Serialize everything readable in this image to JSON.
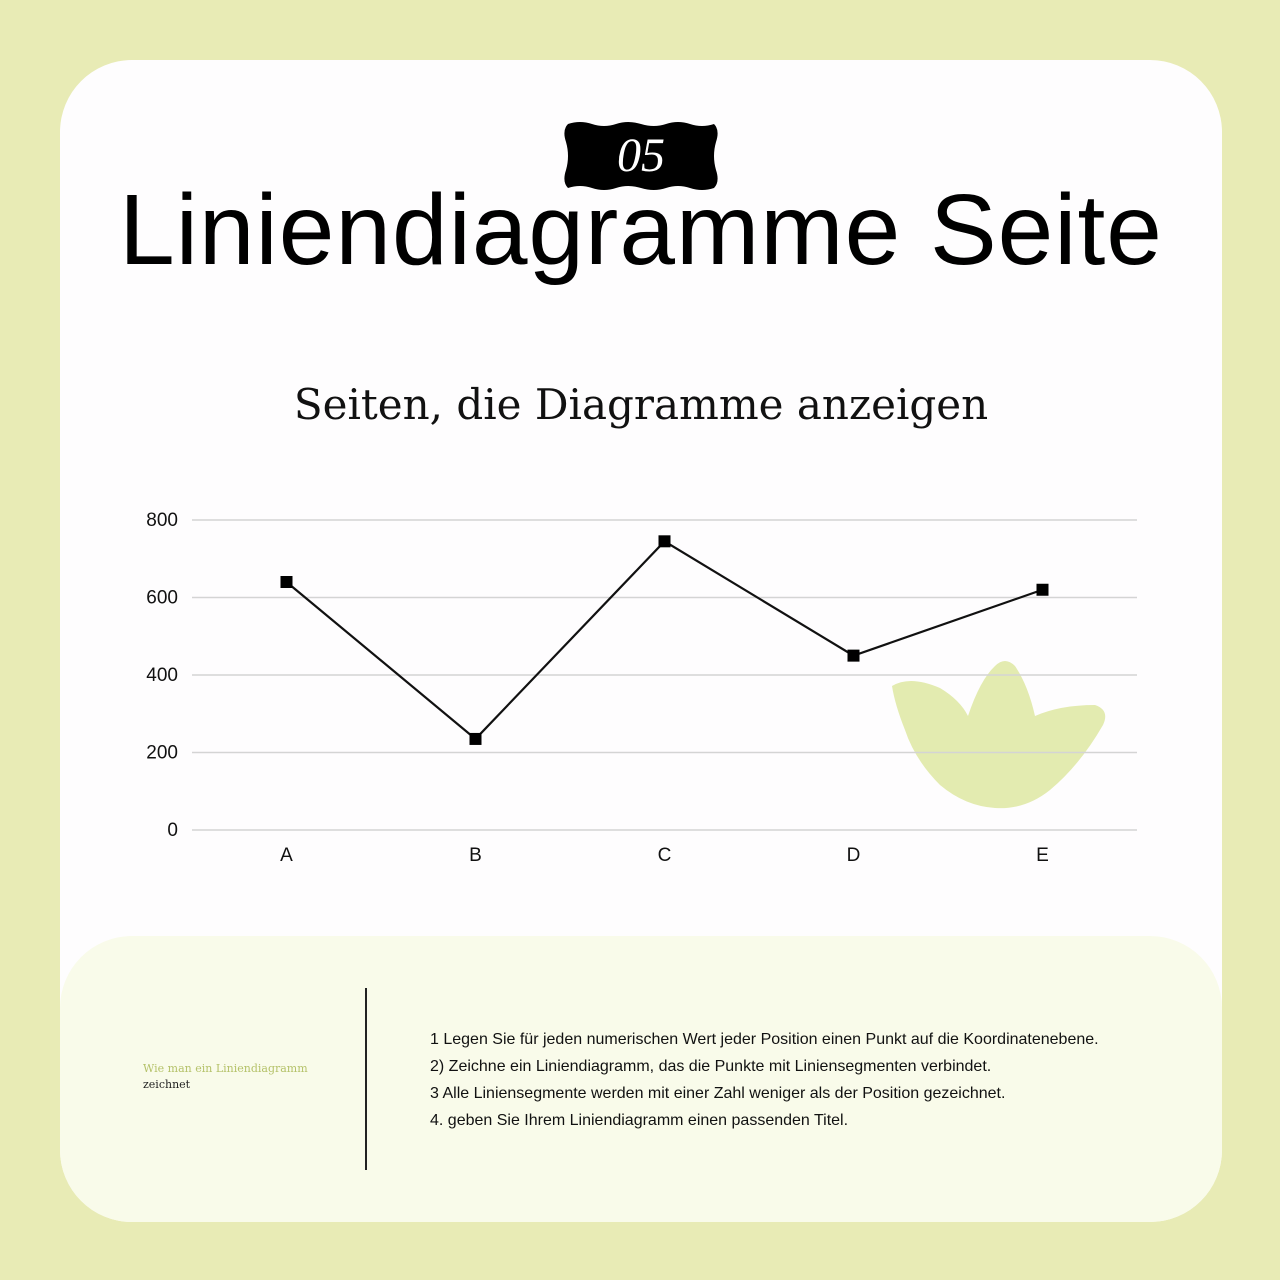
{
  "badge": {
    "number": "05"
  },
  "title": "Liniendiagramme Seite",
  "subtitle": "Seiten, die Diagramme anzeigen",
  "chart_data": {
    "type": "line",
    "categories": [
      "A",
      "B",
      "C",
      "D",
      "E"
    ],
    "series": [
      {
        "values": [
          640,
          235,
          745,
          450,
          620
        ]
      }
    ],
    "ylim": [
      0,
      800
    ],
    "yticks": [
      "0",
      "200",
      "400",
      "600",
      "800"
    ],
    "grid": true,
    "line_color": "#111111",
    "grid_color": "#d4d4d4",
    "marker": "square"
  },
  "decoration": {
    "leaf_icon": "leaf-icon",
    "leaf_color": "#e3ebb0"
  },
  "footer": {
    "label_line1": "Wie man ein Liniendiagramm",
    "label_line2": "zeichnet",
    "label_color": "#b5c26a",
    "steps": [
      "1 Legen Sie für jeden numerischen Wert jeder Position einen Punkt auf die Koordinatenebene.",
      "2) Zeichne ein Liniendiagramm, das die Punkte mit Liniensegmenten verbindet.",
      "3 Alle Liniensegmente werden mit einer Zahl weniger als der Position gezeichnet.",
      "4. geben Sie Ihrem Liniendiagramm einen passenden Titel."
    ]
  },
  "colors": {
    "background": "#e8ebb5",
    "card": "#fefdfe",
    "footer": "#f9fbea"
  }
}
